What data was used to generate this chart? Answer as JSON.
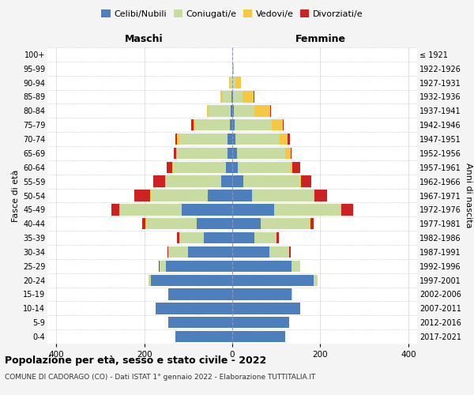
{
  "age_groups": [
    "0-4",
    "5-9",
    "10-14",
    "15-19",
    "20-24",
    "25-29",
    "30-34",
    "35-39",
    "40-44",
    "45-49",
    "50-54",
    "55-59",
    "60-64",
    "65-69",
    "70-74",
    "75-79",
    "80-84",
    "85-89",
    "90-94",
    "95-99",
    "100+"
  ],
  "birth_years": [
    "2017-2021",
    "2012-2016",
    "2007-2011",
    "2002-2006",
    "1997-2001",
    "1992-1996",
    "1987-1991",
    "1982-1986",
    "1977-1981",
    "1972-1976",
    "1967-1971",
    "1962-1966",
    "1957-1961",
    "1952-1956",
    "1947-1951",
    "1942-1946",
    "1937-1941",
    "1932-1936",
    "1927-1931",
    "1922-1926",
    "≤ 1921"
  ],
  "male": {
    "celibi": [
      130,
      145,
      175,
      145,
      185,
      150,
      100,
      65,
      80,
      115,
      55,
      25,
      15,
      10,
      10,
      5,
      3,
      2,
      0,
      0,
      0
    ],
    "coniugati": [
      0,
      0,
      0,
      0,
      5,
      15,
      45,
      55,
      115,
      140,
      130,
      125,
      120,
      115,
      110,
      80,
      50,
      20,
      5,
      0,
      0
    ],
    "vedovi": [
      0,
      0,
      0,
      0,
      0,
      0,
      0,
      0,
      2,
      2,
      2,
      2,
      2,
      3,
      5,
      3,
      5,
      5,
      2,
      0,
      0
    ],
    "divorziati": [
      0,
      0,
      0,
      0,
      0,
      2,
      2,
      5,
      8,
      18,
      35,
      28,
      12,
      5,
      5,
      5,
      0,
      0,
      0,
      0,
      0
    ]
  },
  "female": {
    "nubili": [
      120,
      130,
      155,
      135,
      185,
      135,
      85,
      50,
      65,
      95,
      45,
      25,
      12,
      10,
      8,
      5,
      3,
      2,
      0,
      0,
      0
    ],
    "coniugate": [
      0,
      0,
      0,
      2,
      8,
      20,
      45,
      50,
      110,
      150,
      140,
      130,
      120,
      110,
      100,
      85,
      48,
      22,
      8,
      2,
      0
    ],
    "vedove": [
      0,
      0,
      0,
      0,
      0,
      0,
      0,
      0,
      2,
      2,
      2,
      2,
      5,
      12,
      18,
      25,
      35,
      25,
      12,
      2,
      0
    ],
    "divorziate": [
      0,
      0,
      0,
      0,
      0,
      0,
      2,
      5,
      8,
      28,
      28,
      22,
      18,
      3,
      5,
      2,
      2,
      2,
      0,
      0,
      0
    ]
  },
  "colors": {
    "celibi": "#4d7fbd",
    "coniugati": "#c8dba0",
    "vedovi": "#f5c842",
    "divorziati": "#cc2222"
  },
  "xlim": 420,
  "title": "Popolazione per età, sesso e stato civile - 2022",
  "subtitle": "COMUNE DI CADORAGO (CO) - Dati ISTAT 1° gennaio 2022 - Elaborazione TUTTITALIA.IT",
  "ylabel": "Fasce di età",
  "ylabel_right": "Anni di nascita",
  "xlabel_left": "Maschi",
  "xlabel_right": "Femmine",
  "bg_color": "#f4f4f4",
  "plot_bg": "#ffffff"
}
